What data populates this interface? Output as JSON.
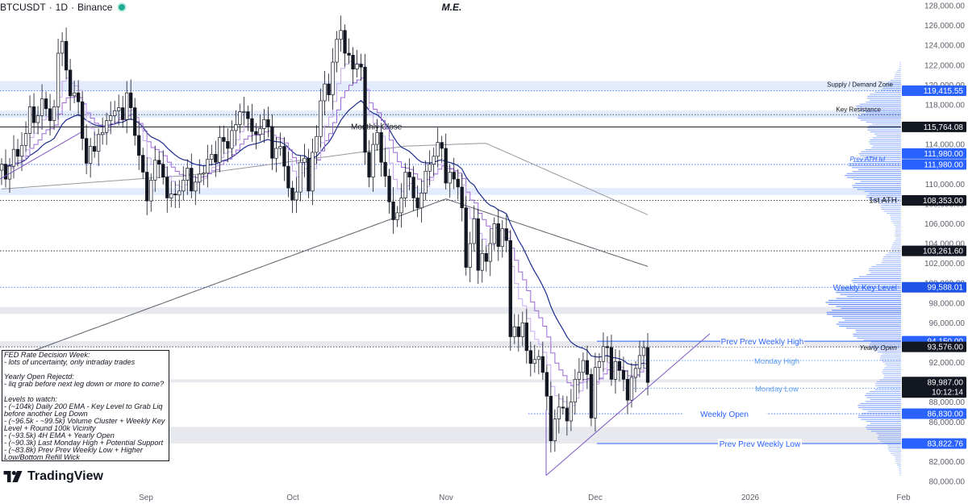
{
  "header": {
    "symbol": "BTCUSDT",
    "sep1": "·",
    "timeframe": "1D",
    "sep2": "·",
    "exchange": "Binance",
    "center_title": "M.E."
  },
  "brand": {
    "name": "TradingView"
  },
  "notes": {
    "lines": [
      "FED Rate Decision Week:",
      "- lots of uncertainty, only intraday trades",
      "",
      "Yearly Open Rejectd:",
      "- liq grab before next leg down or more to come?",
      "",
      "Levels to watch:",
      "- (~104k) Daily 200 EMA - Key Level to Grab Liq",
      "before another Leg Down",
      "- (~96.5k - ~99.5k) Volume Cluster + Weekly Key",
      "Level + Round 100k Vicinity",
      "- (~93.5k) 4H EMA + Yearly Open",
      "- (~90.3k) Last Monday High + Potential Support",
      "- (~83.8k) Prev Prev Weekly Low + Higher",
      "Low/Bottom Refill Wick"
    ]
  },
  "chart_data": {
    "type": "candlestick",
    "title": "",
    "y_axis": {
      "min": 80000,
      "max": 128000,
      "step": 2000,
      "ticks": [
        "128,000.00",
        "126,000.00",
        "124,000.00",
        "122,000.00",
        "120,000.00",
        "118,000.00",
        "116,000.00",
        "114,000.00",
        "112,000.00",
        "110,000.00",
        "108,000.00",
        "106,000.00",
        "104,000.00",
        "102,000.00",
        "100,000.00",
        "98,000.00",
        "96,000.00",
        "94,000.00",
        "92,000.00",
        "90,000.00",
        "88,000.00",
        "86,000.00",
        "84,000.00",
        "82,000.00",
        "80,000.00"
      ]
    },
    "x_axis": {
      "labels": [
        "Sep",
        "Oct",
        "Nov",
        "Dec",
        "2026",
        "Feb"
      ]
    },
    "grid": false,
    "zones": [
      {
        "low": 119415.55,
        "high": 120400,
        "label": "Supply / Demand Zone"
      },
      {
        "low": 96900,
        "high": 97600,
        "label": ""
      },
      {
        "low": 93576,
        "high": 94150,
        "label": ""
      },
      {
        "low": 89987,
        "high": 90300,
        "label": ""
      },
      {
        "low": 83822.76,
        "high": 85500,
        "label": ""
      }
    ],
    "levels": [
      {
        "price": 119415.55,
        "label": "Supply / Demand Zone",
        "price_label": "119,415.55",
        "style": "dotted",
        "color": "#2962ff"
      },
      {
        "price": 117000,
        "label": "Key Resistance",
        "price_label": "",
        "style": "dotted",
        "color": "#434651"
      },
      {
        "price": 115764.08,
        "label": "Monthly Close",
        "price_label": "115,764.08",
        "style": "solid",
        "color": "#131722"
      },
      {
        "price": 111980,
        "label": "Prev ATH lvl",
        "price_label": "111,980.00",
        "style": "dotted",
        "color": "#2962ff"
      },
      {
        "price": 108353,
        "label": "1st ATH",
        "price_label": "108,353.00",
        "style": "dotted",
        "color": "#131722"
      },
      {
        "price": 103261.6,
        "label": "",
        "price_label": "103,261.60",
        "style": "dotted",
        "color": "#131722"
      },
      {
        "price": 99588.01,
        "label": "Weekly Key Level",
        "price_label": "99,588.01",
        "style": "dotted",
        "color": "#2962ff"
      },
      {
        "price": 94150,
        "label": "Prev Prev Weekly High",
        "price_label": "94,150.00",
        "style": "solid",
        "color": "#2962ff"
      },
      {
        "price": 93576,
        "label": "Yearly Open",
        "price_label": "93,576.00",
        "style": "dotted",
        "color": "#131722"
      },
      {
        "price": 92200,
        "label": "Monday High",
        "price_label": "",
        "style": "dotted",
        "color": "#5b9cf6"
      },
      {
        "price": 89400,
        "label": "Monday Low",
        "price_label": "",
        "style": "dotted",
        "color": "#5b9cf6"
      },
      {
        "price": 86830,
        "label": "Weekly Open",
        "price_label": "86,830.00",
        "style": "dotted",
        "color": "#2962ff"
      },
      {
        "price": 83822.76,
        "label": "Prev Prev Weekly Low",
        "price_label": "83,822.76",
        "style": "solid",
        "color": "#2962ff"
      }
    ],
    "current_price": {
      "price": 89987,
      "label": "89,987.00",
      "countdown": "10:12:14"
    },
    "series_close": [
      112000,
      110500,
      111800,
      113500,
      112800,
      113900,
      115100,
      117800,
      116200,
      116900,
      118600,
      117600,
      116400,
      117800,
      123200,
      124400,
      121500,
      118900,
      119200,
      118300,
      114600,
      112100,
      113800,
      113300,
      115000,
      115200,
      116400,
      116900,
      117400,
      117700,
      116500,
      119200,
      117700,
      114900,
      112900,
      111200,
      108300,
      110400,
      112400,
      112000,
      110700,
      108600,
      109000,
      108900,
      109300,
      110400,
      111600,
      109300,
      110200,
      111000,
      111100,
      112500,
      113000,
      112200,
      114700,
      114300,
      113600,
      115400,
      116000,
      117300,
      117300,
      116600,
      115300,
      115000,
      115600,
      116500,
      115800,
      112600,
      113600,
      113800,
      111800,
      109600,
      108400,
      109200,
      112200,
      112600,
      109300,
      113200,
      114800,
      118400,
      120100,
      119000,
      122300,
      124600,
      125500,
      123200,
      123000,
      121600,
      122100,
      121800,
      113200,
      110700,
      114000,
      115200,
      112200,
      110800,
      108200,
      106400,
      107100,
      108600,
      111200,
      110700,
      108600,
      107600,
      109100,
      111300,
      112000,
      112800,
      114200,
      113600,
      110100,
      111200,
      110500,
      109700,
      107600,
      101600,
      104000,
      106500,
      101300,
      103000,
      102200,
      104000,
      106000,
      103700,
      105500,
      104300,
      94600,
      95600,
      94600,
      96000,
      93200,
      91900,
      92300,
      92600,
      91000,
      88600,
      84100,
      86300,
      87500,
      87400,
      86100,
      88000,
      90300,
      91000,
      92200,
      90800,
      86400,
      91500,
      92100,
      93600,
      93500,
      90300,
      92100,
      91200,
      90300,
      88200,
      90500,
      91400,
      92700,
      93500,
      89987
    ],
    "volume_profile_note": "horizontal volume profile on right side",
    "moving_averages": [
      "EMA short (light purple)",
      "EMA mid (purple)",
      "EMA (navy)",
      "SMA 100 (grey)",
      "EMA 200 (dark grey)"
    ]
  },
  "colors": {
    "up": "#131722",
    "down": "#131722",
    "up_fill": "#ffffff",
    "down_fill": "#131722",
    "zone": "#e8e9ee",
    "zone_blue": "#e3ecfd",
    "blue": "#2962ff",
    "navy": "#0c3299",
    "profile": "#2962ff"
  },
  "icons": {
    "status": "live-dot-icon",
    "logo": "tradingview-logo-icon"
  }
}
